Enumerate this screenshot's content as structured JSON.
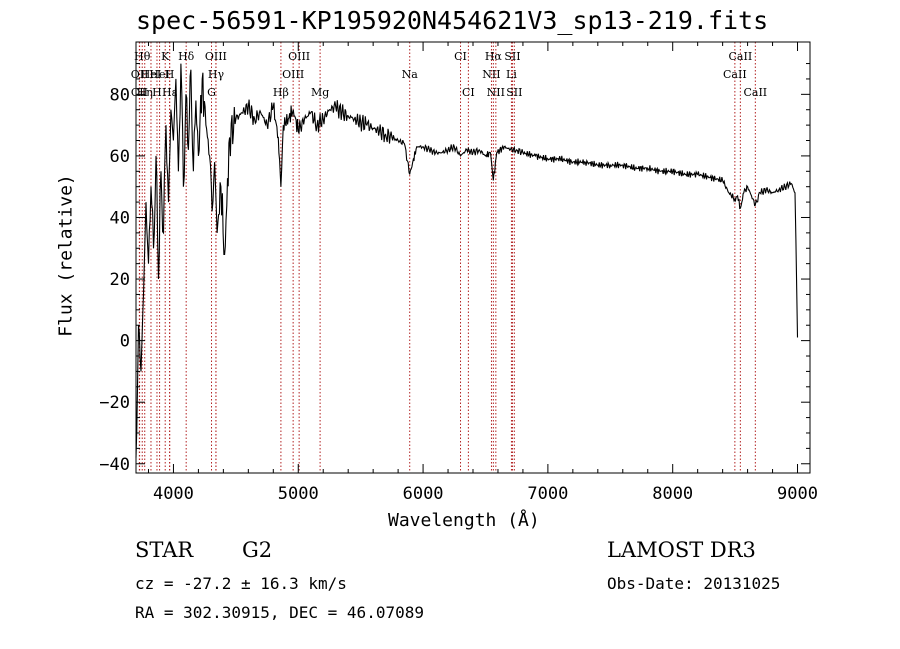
{
  "title": "spec-56591-KP195920N454621V3_sp13-219.fits",
  "info": {
    "object_class": "STAR",
    "subclass": "G2",
    "survey": "LAMOST DR3",
    "cz": "cz = -27.2 ± 16.3 km/s",
    "obs_date": "Obs-Date: 20131025",
    "radec": "RA = 302.30915, DEC =  46.07089"
  },
  "chart_data": {
    "type": "line",
    "title": "spec-56591-KP195920N454621V3_sp13-219.fits",
    "xlabel": "Wavelength (Å)",
    "ylabel": "Flux (relative)",
    "xlim": [
      3700,
      9100
    ],
    "ylim": [
      -43,
      97
    ],
    "xticks": [
      4000,
      5000,
      6000,
      7000,
      8000,
      9000
    ],
    "yticks": [
      -40,
      -20,
      0,
      20,
      40,
      60,
      80
    ],
    "line_color": "#000000",
    "marker_color": "#b22222",
    "series": [
      {
        "name": "flux",
        "x": [
          3700,
          3720,
          3740,
          3760,
          3780,
          3800,
          3820,
          3840,
          3860,
          3880,
          3900,
          3920,
          3940,
          3960,
          3980,
          4000,
          4020,
          4040,
          4060,
          4080,
          4100,
          4120,
          4140,
          4160,
          4180,
          4200,
          4230,
          4260,
          4290,
          4310,
          4330,
          4350,
          4380,
          4410,
          4450,
          4500,
          4550,
          4600,
          4650,
          4700,
          4750,
          4800,
          4840,
          4861,
          4880,
          4920,
          4960,
          5000,
          5050,
          5100,
          5150,
          5200,
          5250,
          5300,
          5350,
          5400,
          5450,
          5500,
          5550,
          5600,
          5650,
          5700,
          5750,
          5800,
          5850,
          5893,
          5950,
          6000,
          6050,
          6100,
          6150,
          6200,
          6250,
          6300,
          6350,
          6400,
          6450,
          6500,
          6540,
          6563,
          6590,
          6650,
          6700,
          6750,
          6800,
          6900,
          7000,
          7100,
          7200,
          7300,
          7400,
          7500,
          7600,
          7700,
          7800,
          7900,
          8000,
          8100,
          8200,
          8300,
          8400,
          8450,
          8498,
          8520,
          8542,
          8570,
          8600,
          8662,
          8700,
          8750,
          8800,
          8850,
          8900,
          8950,
          8980,
          9000
        ],
        "y": [
          -38,
          5,
          -10,
          15,
          45,
          25,
          50,
          30,
          60,
          20,
          55,
          35,
          70,
          45,
          75,
          65,
          85,
          55,
          90,
          50,
          80,
          62,
          88,
          55,
          78,
          60,
          85,
          70,
          60,
          42,
          58,
          35,
          50,
          28,
          66,
          72,
          74,
          76,
          72,
          74,
          70,
          76,
          66,
          50,
          70,
          72,
          75,
          68,
          72,
          74,
          70,
          72,
          75,
          76,
          74,
          73,
          72,
          71,
          70,
          69,
          68,
          67,
          66,
          65,
          64,
          54,
          63,
          63,
          62,
          61,
          61,
          62,
          63,
          60,
          62,
          61,
          62,
          60,
          61,
          52,
          61,
          63,
          62,
          62,
          61,
          60,
          59,
          59,
          58,
          58,
          57,
          57,
          57,
          56,
          56,
          55,
          55,
          54,
          54,
          53,
          52,
          48,
          46,
          47,
          43,
          48,
          50,
          44,
          48,
          49,
          48,
          49,
          50,
          51,
          48,
          1
        ]
      }
    ],
    "lines": [
      {
        "label": "CII",
        "wave": 3727,
        "row": 2
      },
      {
        "label": "OII",
        "wave": 3729,
        "row": 1
      },
      {
        "label": "Hθ",
        "wave": 3750,
        "row": 0
      },
      {
        "label": "Hη",
        "wave": 3770,
        "row": 2
      },
      {
        "label": "HeI",
        "wave": 3820,
        "row": 1
      },
      {
        "label": "H",
        "wave": 3868,
        "row": 2
      },
      {
        "label": "K",
        "wave": 3934,
        "row": 0
      },
      {
        "label": "HeI",
        "wave": 3889,
        "row": 1
      },
      {
        "label": "H",
        "wave": 3969,
        "row": 1
      },
      {
        "label": "Hε",
        "wave": 3970,
        "row": 2
      },
      {
        "label": "Hδ",
        "wave": 4102,
        "row": 0
      },
      {
        "label": "OIII",
        "wave": 4340,
        "row": 0
      },
      {
        "label": "Hγ",
        "wave": 4341,
        "row": 1
      },
      {
        "label": "G",
        "wave": 4305,
        "row": 2
      },
      {
        "label": "Hβ",
        "wave": 4861,
        "row": 2
      },
      {
        "label": "OIII",
        "wave": 4959,
        "row": 1
      },
      {
        "label": "OIII",
        "wave": 5007,
        "row": 0
      },
      {
        "label": "Mg",
        "wave": 5175,
        "row": 2
      },
      {
        "label": "Na",
        "wave": 5893,
        "row": 1
      },
      {
        "label": "CI",
        "wave": 6300,
        "row": 0
      },
      {
        "label": "CI",
        "wave": 6363,
        "row": 2
      },
      {
        "label": "Hα",
        "wave": 6563,
        "row": 0
      },
      {
        "label": "NII",
        "wave": 6548,
        "row": 1
      },
      {
        "label": "NII",
        "wave": 6583,
        "row": 2
      },
      {
        "label": "SII",
        "wave": 6716,
        "row": 0
      },
      {
        "label": "Li",
        "wave": 6708,
        "row": 1
      },
      {
        "label": "SII",
        "wave": 6731,
        "row": 2
      },
      {
        "label": "CaII",
        "wave": 8498,
        "row": 1
      },
      {
        "label": "CaII",
        "wave": 8542,
        "row": 0
      },
      {
        "label": "CaII",
        "wave": 8662,
        "row": 2
      }
    ]
  }
}
